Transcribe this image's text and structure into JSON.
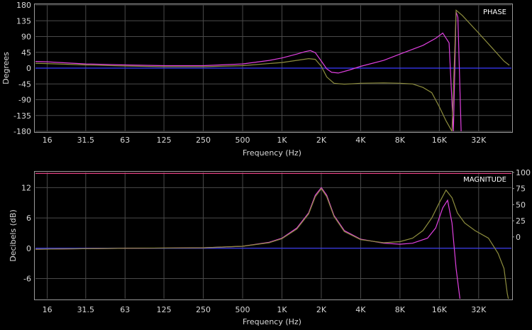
{
  "chart_data": [
    {
      "type": "line",
      "title": "PHASE",
      "xlabel": "Frequency (Hz)",
      "ylabel": "Degrees",
      "xscale": "log",
      "xlim": [
        13,
        57000
      ],
      "ylim": [
        -180,
        180
      ],
      "x_ticks": [
        16,
        31.5,
        63,
        125,
        250,
        500,
        1000,
        2000,
        4000,
        8000,
        16000,
        32000
      ],
      "x_tick_labels": [
        "16",
        "31.5",
        "63",
        "125",
        "250",
        "500",
        "1K",
        "2K",
        "4K",
        "8K",
        "16K",
        "32K"
      ],
      "y_ticks": [
        180,
        135,
        90,
        45,
        0,
        -45,
        -90,
        -135,
        -180
      ],
      "y_tick_labels": [
        "180",
        "135",
        "90",
        "45",
        "0",
        "-45",
        "-90",
        "-135",
        "-180"
      ],
      "grid": true,
      "series": [
        {
          "color": "#3a3aff",
          "points": [
            [
              13,
              0
            ],
            [
              57000,
              0
            ]
          ]
        },
        {
          "color": "#e040e0",
          "points": [
            [
              13,
              19
            ],
            [
              16,
              18
            ],
            [
              31.5,
              12
            ],
            [
              63,
              9
            ],
            [
              125,
              7
            ],
            [
              250,
              7
            ],
            [
              500,
              12
            ],
            [
              800,
              22
            ],
            [
              1000,
              29
            ],
            [
              1300,
              40
            ],
            [
              1500,
              47
            ],
            [
              1650,
              50
            ],
            [
              1800,
              44
            ],
            [
              2000,
              20
            ],
            [
              2200,
              -2
            ],
            [
              2400,
              -12
            ],
            [
              2700,
              -14
            ],
            [
              3300,
              -5
            ],
            [
              4000,
              5
            ],
            [
              6000,
              22
            ],
            [
              8000,
              40
            ],
            [
              12000,
              65
            ],
            [
              15000,
              85
            ],
            [
              17000,
              100
            ],
            [
              19000,
              72
            ],
            [
              20500,
              -180
            ],
            [
              21500,
              160
            ],
            [
              22200,
              145
            ],
            [
              23500,
              -180
            ]
          ]
        },
        {
          "color": "#8e8e3e",
          "points": [
            [
              13,
              14
            ],
            [
              16,
              13
            ],
            [
              31.5,
              9
            ],
            [
              63,
              6
            ],
            [
              125,
              4
            ],
            [
              250,
              4
            ],
            [
              500,
              7
            ],
            [
              1000,
              16
            ],
            [
              1600,
              27
            ],
            [
              1800,
              25
            ],
            [
              2000,
              5
            ],
            [
              2200,
              -25
            ],
            [
              2500,
              -43
            ],
            [
              3000,
              -46
            ],
            [
              4000,
              -43
            ],
            [
              6000,
              -42
            ],
            [
              8000,
              -43
            ],
            [
              10000,
              -45
            ],
            [
              12000,
              -55
            ],
            [
              14000,
              -70
            ],
            [
              16000,
              -110
            ],
            [
              18000,
              -150
            ],
            [
              20000,
              -180
            ],
            [
              21500,
              165
            ],
            [
              24000,
              150
            ],
            [
              32000,
              100
            ],
            [
              40000,
              60
            ],
            [
              50000,
              20
            ],
            [
              55000,
              8
            ]
          ]
        }
      ]
    },
    {
      "type": "line",
      "title": "MAGNITUDE",
      "xlabel": "Frequency (Hz)",
      "ylabel": "Decibels (dB)",
      "xscale": "log",
      "xlim": [
        13,
        57000
      ],
      "ylim": [
        -10,
        15
      ],
      "x_ticks": [
        16,
        31.5,
        63,
        125,
        250,
        500,
        1000,
        2000,
        4000,
        8000,
        16000,
        32000
      ],
      "x_tick_labels": [
        "16",
        "31.5",
        "63",
        "125",
        "250",
        "500",
        "1K",
        "2K",
        "4K",
        "8K",
        "16K",
        "32K"
      ],
      "y_ticks": [
        12,
        6,
        0,
        -6
      ],
      "y_tick_labels": [
        "12",
        "6",
        "0",
        "-6"
      ],
      "y2_ticks": [
        100,
        75,
        50,
        25,
        0
      ],
      "y2_tick_labels": [
        "100",
        "75",
        "50",
        "25",
        "0"
      ],
      "grid": true,
      "series": [
        {
          "color": "#3a3aff",
          "points": [
            [
              13,
              0
            ],
            [
              57000,
              0
            ]
          ]
        },
        {
          "color": "#e04080",
          "points": [
            [
              13,
              14.8
            ],
            [
              57000,
              14.8
            ]
          ]
        },
        {
          "color": "#e040e0",
          "points": [
            [
              13,
              -0.2
            ],
            [
              63,
              0
            ],
            [
              250,
              0.1
            ],
            [
              500,
              0.4
            ],
            [
              800,
              1.2
            ],
            [
              1000,
              2
            ],
            [
              1300,
              4
            ],
            [
              1600,
              7
            ],
            [
              1800,
              10.5
            ],
            [
              2000,
              12
            ],
            [
              2200,
              10.5
            ],
            [
              2500,
              6.5
            ],
            [
              3000,
              3.5
            ],
            [
              4000,
              1.8
            ],
            [
              6000,
              1
            ],
            [
              8000,
              0.8
            ],
            [
              10000,
              1
            ],
            [
              13000,
              2
            ],
            [
              15000,
              4
            ],
            [
              17000,
              8
            ],
            [
              18500,
              9.5
            ],
            [
              20000,
              5
            ],
            [
              21500,
              -4
            ],
            [
              23000,
              -10
            ],
            [
              23500,
              -11
            ]
          ]
        },
        {
          "color": "#8e8e3e",
          "points": [
            [
              13,
              -0.2
            ],
            [
              63,
              0
            ],
            [
              250,
              0.1
            ],
            [
              500,
              0.4
            ],
            [
              800,
              1.1
            ],
            [
              1000,
              1.9
            ],
            [
              1300,
              3.8
            ],
            [
              1600,
              6.8
            ],
            [
              1800,
              10.2
            ],
            [
              2000,
              11.8
            ],
            [
              2200,
              10.2
            ],
            [
              2500,
              6.3
            ],
            [
              3000,
              3.3
            ],
            [
              4000,
              1.7
            ],
            [
              6000,
              1.1
            ],
            [
              8000,
              1.3
            ],
            [
              10000,
              2
            ],
            [
              12000,
              3.5
            ],
            [
              14000,
              6
            ],
            [
              16000,
              9
            ],
            [
              18000,
              11.5
            ],
            [
              20000,
              10
            ],
            [
              22000,
              7
            ],
            [
              25000,
              5
            ],
            [
              30000,
              3.5
            ],
            [
              38000,
              2
            ],
            [
              45000,
              -1
            ],
            [
              50000,
              -4
            ],
            [
              53000,
              -9
            ],
            [
              55000,
              -11
            ]
          ]
        }
      ]
    }
  ]
}
